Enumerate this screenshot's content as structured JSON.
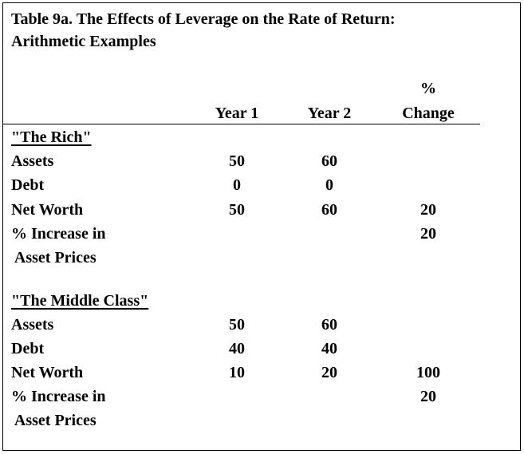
{
  "title": {
    "line1": "Table 9a. The Effects of Leverage on the Rate of Return:",
    "line2": "Arithmetic Examples"
  },
  "columns": {
    "year1": "Year 1",
    "year2": "Year 2",
    "change_line1": "%",
    "change_line2": "Change"
  },
  "sections": [
    {
      "heading": "\"The Rich\"",
      "rows": [
        {
          "label": "Assets",
          "year1": "50",
          "year2": "60",
          "change": ""
        },
        {
          "label": "Debt",
          "year1": "0",
          "year2": "0",
          "change": ""
        },
        {
          "label": "Net Worth",
          "year1": "50",
          "year2": "60",
          "change": "20"
        },
        {
          "label": "% Increase in",
          "year1": "",
          "year2": "",
          "change": "20"
        },
        {
          "label": " Asset Prices",
          "year1": "",
          "year2": "",
          "change": ""
        }
      ]
    },
    {
      "heading": "\"The Middle Class\"",
      "rows": [
        {
          "label": "Assets",
          "year1": "50",
          "year2": "60",
          "change": ""
        },
        {
          "label": "Debt",
          "year1": "40",
          "year2": "40",
          "change": ""
        },
        {
          "label": "Net Worth",
          "year1": "10",
          "year2": "20",
          "change": "100"
        },
        {
          "label": "% Increase in",
          "year1": "",
          "year2": "",
          "change": "20"
        },
        {
          "label": " Asset Prices",
          "year1": "",
          "year2": "",
          "change": ""
        }
      ]
    }
  ]
}
